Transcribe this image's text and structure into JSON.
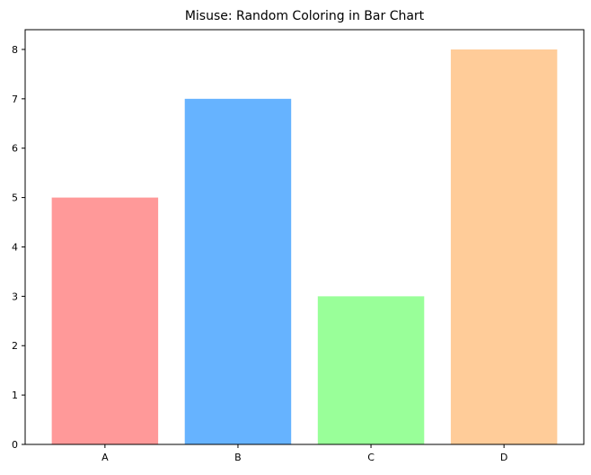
{
  "chart_data": {
    "type": "bar",
    "title": "Misuse: Random Coloring in Bar Chart",
    "xlabel": "",
    "ylabel": "",
    "categories": [
      "A",
      "B",
      "C",
      "D"
    ],
    "values": [
      5,
      7,
      3,
      8
    ],
    "colors": [
      "#ff9999",
      "#66b3ff",
      "#99ff99",
      "#ffcc99"
    ],
    "ylim": [
      0,
      8.4
    ],
    "yticks": [
      0,
      1,
      2,
      3,
      4,
      5,
      6,
      7,
      8
    ],
    "grid": false,
    "legend": "none"
  }
}
